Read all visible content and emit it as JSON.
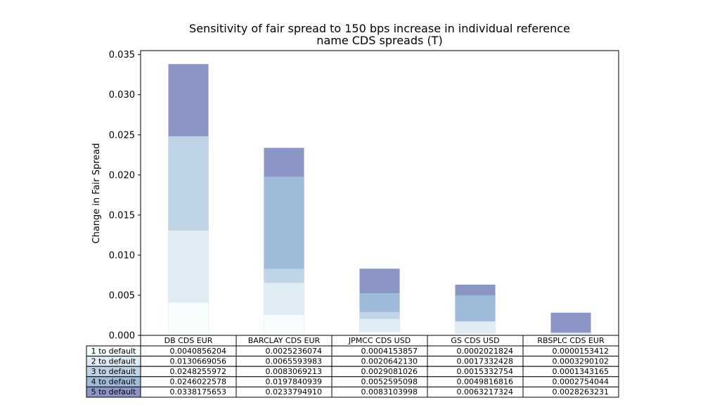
{
  "chart_data": {
    "type": "bar",
    "title": "Sensitivity of fair spread to 150 bps increase in individual reference name CDS spreads (T)",
    "title_lines": [
      "Sensitivity of fair spread to 150 bps increase in individual reference",
      "name CDS spreads (T)"
    ],
    "xlabel": "",
    "ylabel": "Change in Fair Spread",
    "ylim": [
      0,
      0.0355
    ],
    "yticks": [
      "0.000",
      "0.005",
      "0.010",
      "0.015",
      "0.020",
      "0.025",
      "0.030",
      "0.035"
    ],
    "ytick_values": [
      0,
      0.005,
      0.01,
      0.015,
      0.02,
      0.025,
      0.03,
      0.035
    ],
    "grid": false,
    "categories": [
      "DB CDS EUR",
      "BARCLAY CDS EUR",
      "JPMCC CDS USD",
      "GS CDS USD",
      "RBSPLC CDS EUR"
    ],
    "series": [
      {
        "name": "1 to default",
        "color": "#f7fcfd",
        "values": [
          0.0040856204,
          0.0025236074,
          0.0004153857,
          0.0002021824,
          1.53412e-05
        ],
        "labels": [
          "0.0040856204",
          "0.0025236074",
          "0.0004153857",
          "0.0002021824",
          "0.0000153412"
        ]
      },
      {
        "name": "2 to default",
        "color": "#e0ecf4",
        "values": [
          0.0130669056,
          0.0065593983,
          0.002064213,
          0.0017332428,
          0.0003290102
        ],
        "labels": [
          "0.0130669056",
          "0.0065593983",
          "0.0020642130",
          "0.0017332428",
          "0.0003290102"
        ]
      },
      {
        "name": "3 to default",
        "color": "#bfd3e6",
        "values": [
          0.0248255972,
          0.0083069213,
          0.0029081026,
          0.0015332754,
          0.0001343165
        ],
        "labels": [
          "0.0248255972",
          "0.0083069213",
          "0.0029081026",
          "0.0015332754",
          "0.0001343165"
        ]
      },
      {
        "name": "4 to default",
        "color": "#9ebcda",
        "values": [
          0.0246022578,
          0.0197840939,
          0.0052595098,
          0.0049816816,
          0.0002754044
        ],
        "labels": [
          "0.0246022578",
          "0.0197840939",
          "0.0052595098",
          "0.0049816816",
          "0.0002754044"
        ]
      },
      {
        "name": "5 to default",
        "color": "#8c96c6",
        "values": [
          0.0338175653,
          0.023379491,
          0.0083103998,
          0.0063217324,
          0.0028263231
        ],
        "labels": [
          "0.0338175653",
          "0.0233794910",
          "0.0083103998",
          "0.0063217324",
          "0.0028263231"
        ]
      }
    ]
  }
}
